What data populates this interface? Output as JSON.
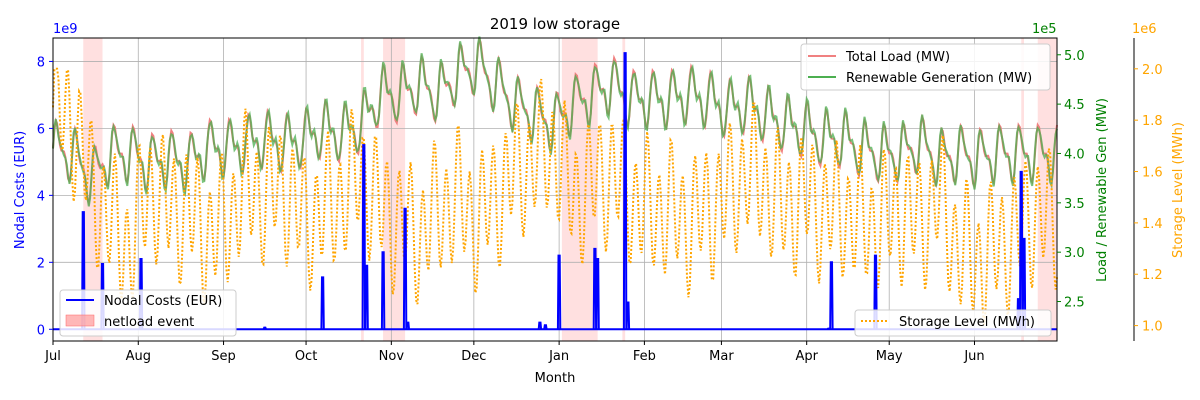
{
  "chart_data": {
    "type": "line",
    "title": "2019 low storage",
    "xlabel": "Month",
    "months": [
      "Jul",
      "Aug",
      "Sep",
      "Oct",
      "Nov",
      "Dec",
      "Jan",
      "Feb",
      "Mar",
      "Apr",
      "May",
      "Jun"
    ],
    "xlim_days": [
      0,
      365
    ],
    "grid": true,
    "axes": {
      "left": {
        "label": "Nodal Costs (EUR)",
        "multiplier": "1e9",
        "ylim": [
          -0.35,
          8.7
        ],
        "ticks": [
          0,
          2,
          4,
          6,
          8
        ],
        "color": "#0000ff"
      },
      "right1": {
        "label": "Load / Renewable Gen (MW)",
        "multiplier": "1e5",
        "ylim": [
          2.1,
          5.17
        ],
        "ticks": [
          2.5,
          3.0,
          3.5,
          4.0,
          4.5,
          5.0
        ],
        "tick_labels": [
          "2.5",
          "3.0",
          "3.5",
          "4.0",
          "4.5",
          "5.0"
        ],
        "color": "#008000"
      },
      "right2": {
        "label": "Storage Level (MWh)",
        "multiplier": "1e6",
        "ylim": [
          0.94,
          2.12
        ],
        "ticks": [
          1.0,
          1.2,
          1.4,
          1.6,
          1.8,
          2.0
        ],
        "tick_labels": [
          "1.0",
          "1.2",
          "1.4",
          "1.6",
          "1.8",
          "2.0"
        ],
        "color": "#ffa500"
      }
    },
    "legends": {
      "upper_right": [
        {
          "label": "Total Load (MW)",
          "color": "#f08080"
        },
        {
          "label": "Renewable Generation (MW)",
          "color": "#4caf50"
        }
      ],
      "lower_left": [
        {
          "label": "Nodal Costs (EUR)",
          "color": "#0000ff"
        },
        {
          "label": "netload event",
          "color": "#ff9999"
        }
      ],
      "lower_right": [
        {
          "label": "Storage Level (MWh)",
          "color": "#ffa500"
        }
      ]
    },
    "netload_events": [
      [
        11,
        18
      ],
      [
        112,
        113
      ],
      [
        120,
        128
      ],
      [
        185,
        198
      ],
      [
        207,
        208
      ],
      [
        352,
        353
      ],
      [
        358,
        365
      ]
    ],
    "nodal_cost_spikes": [
      {
        "day": 11,
        "value": 3.5
      },
      {
        "day": 18,
        "value": 1.95
      },
      {
        "day": 32,
        "value": 2.1
      },
      {
        "day": 77,
        "value": 0.05
      },
      {
        "day": 98,
        "value": 1.55
      },
      {
        "day": 113,
        "value": 5.5
      },
      {
        "day": 114,
        "value": 1.9
      },
      {
        "day": 120,
        "value": 2.3
      },
      {
        "day": 128,
        "value": 3.6
      },
      {
        "day": 129,
        "value": 0.2
      },
      {
        "day": 177,
        "value": 0.2
      },
      {
        "day": 179,
        "value": 0.12
      },
      {
        "day": 184,
        "value": 2.2
      },
      {
        "day": 197,
        "value": 2.4
      },
      {
        "day": 198,
        "value": 2.1
      },
      {
        "day": 208,
        "value": 8.25
      },
      {
        "day": 209,
        "value": 0.8
      },
      {
        "day": 282,
        "value": 0.02
      },
      {
        "day": 283,
        "value": 2.0
      },
      {
        "day": 299,
        "value": 2.2
      },
      {
        "day": 351,
        "value": 0.9
      },
      {
        "day": 352,
        "value": 4.7
      },
      {
        "day": 353,
        "value": 2.7
      }
    ],
    "total_load_weekly": [
      4.05,
      4.0,
      3.75,
      4.0,
      4.0,
      3.9,
      3.95,
      3.9,
      4.05,
      4.05,
      4.1,
      4.15,
      4.1,
      4.15,
      4.25,
      4.2,
      4.3,
      4.6,
      4.6,
      4.7,
      4.6,
      4.8,
      4.9,
      4.7,
      4.5,
      4.4,
      4.3,
      4.5,
      4.6,
      4.7,
      4.55,
      4.55,
      4.55,
      4.6,
      4.55,
      4.45,
      4.5,
      4.4,
      4.3,
      4.25,
      4.15,
      4.15,
      4.05,
      4.0,
      4.0,
      4.1,
      3.95,
      4.0,
      3.95,
      4.0,
      4.0,
      4.0,
      4.0
    ],
    "storage_weekly": [
      1.85,
      1.8,
      1.55,
      1.4,
      1.3,
      1.55,
      1.45,
      1.45,
      1.35,
      1.4,
      1.55,
      1.5,
      1.55,
      1.4,
      1.45,
      1.5,
      1.6,
      1.45,
      1.4,
      1.35,
      1.45,
      1.5,
      1.4,
      1.5,
      1.6,
      1.65,
      1.7,
      1.5,
      1.55,
      1.6,
      1.5,
      1.45,
      1.45,
      1.4,
      1.45,
      1.5,
      1.6,
      1.55,
      1.45,
      1.5,
      1.45,
      1.45,
      1.4,
      1.4,
      1.45,
      1.4,
      1.5,
      1.3,
      1.25,
      1.3,
      1.35,
      1.45,
      1.4
    ]
  }
}
